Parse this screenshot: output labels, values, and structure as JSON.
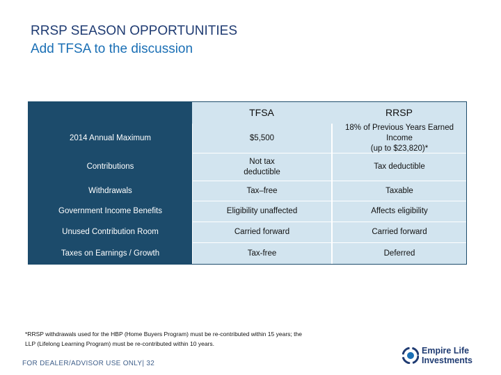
{
  "slide": {
    "title": "RRSP SEASON OPPORTUNITIES",
    "subtitle": "Add TFSA to the discussion"
  },
  "table": {
    "columns": [
      "TFSA",
      "RRSP"
    ],
    "rows": [
      {
        "label": "2014 Annual Maximum",
        "tfsa": "$5,500",
        "rrsp_line1": "18% of Previous Years Earned Income",
        "rrsp_line2": "(up to $23,820)*"
      },
      {
        "label": "Contributions",
        "tfsa_line1": "Not tax",
        "tfsa_line2": "deductible",
        "rrsp": "Tax deductible"
      },
      {
        "label": "Withdrawals",
        "tfsa": "Tax–free",
        "rrsp": "Taxable"
      },
      {
        "label": "Government Income Benefits",
        "tfsa": "Eligibility unaffected",
        "rrsp": "Affects eligibility"
      },
      {
        "label": "Unused Contribution Room",
        "tfsa": "Carried forward",
        "rrsp": "Carried forward"
      },
      {
        "label": "Taxes on Earnings / Growth",
        "tfsa": "Tax-free",
        "rrsp": "Deferred"
      }
    ]
  },
  "footnote": {
    "line1": "*RRSP withdrawals used for the HBP (Home Buyers Program) must be re-contributed within 15 years; the",
    "line2": "LLP (Lifelong Learning Program) must be re-contributed within 10 years."
  },
  "footer": {
    "dealer": "FOR DEALER/ADVISOR USE ONLY| 32"
  },
  "logo": {
    "line1": "Empire Life",
    "line2": "Investments",
    "icon": "empire-life-mark",
    "color": "#1f3b72"
  }
}
